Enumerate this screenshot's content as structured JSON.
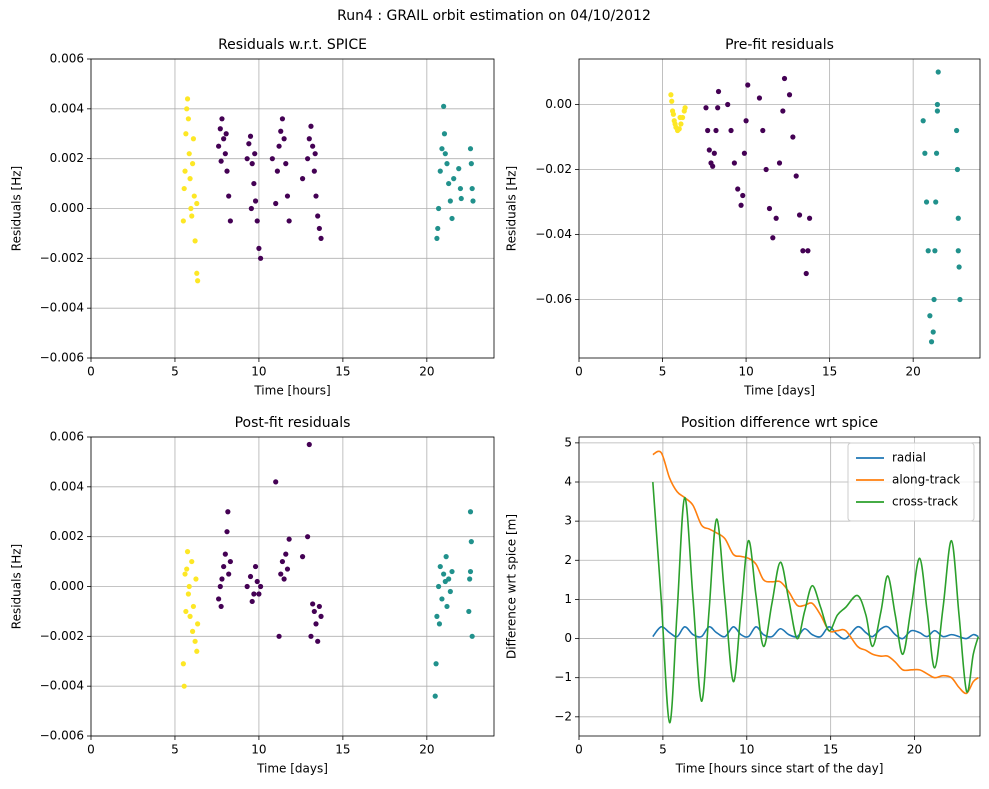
{
  "title": "Run4 : GRAIL orbit estimation on 04/10/2012",
  "chart_data": [
    {
      "type": "scatter",
      "title": "Residuals w.r.t. SPICE",
      "x_label": "Time [hours]",
      "y_label": "Residuals [Hz]",
      "xlim": [
        0,
        24
      ],
      "xticks": [
        0,
        5,
        10,
        15,
        20
      ],
      "ylim": [
        -0.006,
        0.006
      ],
      "yticks": [
        {
          "value": -0.006,
          "label": "−0.006"
        },
        {
          "value": -0.004,
          "label": "−0.004"
        },
        {
          "value": -0.002,
          "label": "−0.002"
        },
        {
          "value": 0,
          "label": "0.000"
        },
        0.002,
        0.004,
        0.006
      ],
      "grid": true,
      "series": [
        {
          "color": "#fde725",
          "x": [
            5.5,
            5.55,
            5.6,
            5.65,
            5.7,
            5.75,
            5.8,
            5.85,
            5.9,
            5.95,
            6.0,
            6.05,
            6.1,
            6.15,
            6.2,
            6.3,
            6.35,
            6.3
          ],
          "values": [
            -0.0005,
            0.0008,
            0.0015,
            0.003,
            0.004,
            0.0044,
            0.0036,
            0.0022,
            0.0012,
            0,
            -0.0003,
            0.0018,
            0.0028,
            0.0005,
            -0.0013,
            -0.0026,
            -0.0029,
            0.0002
          ]
        },
        {
          "color": "#440154",
          "x": [
            7.6,
            7.7,
            7.8,
            7.9,
            8.0,
            8.1,
            8.2,
            8.3,
            7.75,
            8.05,
            9.3,
            9.4,
            9.5,
            9.6,
            9.7,
            9.8,
            9.9,
            10.0,
            10.1,
            9.55,
            9.75,
            11.1,
            11.2,
            11.3,
            11.4,
            11.5,
            11.6,
            11.7,
            11.8,
            11.0,
            10.8,
            12.9,
            13.0,
            13.1,
            13.2,
            13.3,
            13.4,
            13.5,
            13.6,
            13.7,
            12.6,
            13.35
          ],
          "values": [
            0.0025,
            0.0032,
            0.0036,
            0.0028,
            0.0022,
            0.0015,
            0.0005,
            -0.0005,
            0.0019,
            0.003,
            0.002,
            0.0026,
            0.0029,
            0.0018,
            0.001,
            0.0003,
            -0.0005,
            -0.0016,
            -0.002,
            0,
            0.0022,
            0.0015,
            0.0025,
            0.0031,
            0.0036,
            0.0028,
            0.0018,
            0.0005,
            -0.0005,
            0.0002,
            0.002,
            0.002,
            0.0028,
            0.0033,
            0.0025,
            0.0015,
            0.0005,
            -0.0003,
            -0.0008,
            -0.0012,
            0.0012,
            0.0022
          ]
        },
        {
          "color": "#21918c",
          "x": [
            20.6,
            20.7,
            20.8,
            20.9,
            21.0,
            21.05,
            21.1,
            21.2,
            21.3,
            21.4,
            21.5,
            21.6,
            21.9,
            22.0,
            22.05,
            22.6,
            22.65,
            22.7,
            22.75,
            20.65
          ],
          "values": [
            -0.0012,
            0,
            0.0015,
            0.0024,
            0.0041,
            0.003,
            0.0022,
            0.0018,
            0.001,
            0.0003,
            -0.0004,
            0.0012,
            0.0016,
            0.0008,
            0.0004,
            0.0024,
            0.0018,
            0.0008,
            0.0003,
            -0.0008
          ]
        }
      ]
    },
    {
      "type": "scatter",
      "title": "Pre-fit residuals",
      "x_label": "Time [days]",
      "y_label": "Residuals [Hz]",
      "xlim": [
        0,
        24
      ],
      "xticks": [
        0,
        5,
        10,
        15,
        20
      ],
      "ylim": [
        -0.078,
        0.014
      ],
      "yticks": [
        {
          "value": -0.06,
          "label": "−0.06"
        },
        {
          "value": -0.04,
          "label": "−0.04"
        },
        {
          "value": -0.02,
          "label": "−0.02"
        },
        {
          "value": 0,
          "label": "0.00"
        }
      ],
      "grid": true,
      "series": [
        {
          "color": "#fde725",
          "x": [
            5.5,
            5.55,
            5.6,
            5.7,
            5.8,
            5.9,
            6.0,
            6.1,
            6.2,
            6.3,
            6.35,
            5.65,
            5.75,
            6.05
          ],
          "values": [
            0.003,
            0.001,
            -0.002,
            -0.005,
            -0.007,
            -0.008,
            -0.0075,
            -0.006,
            -0.004,
            -0.002,
            -0.001,
            -0.003,
            -0.006,
            -0.004
          ]
        },
        {
          "color": "#440154",
          "x": [
            7.6,
            7.7,
            7.8,
            7.9,
            8.0,
            8.1,
            8.2,
            8.3,
            8.35,
            8.9,
            9.1,
            9.3,
            9.5,
            9.7,
            9.8,
            9.9,
            10.0,
            10.1,
            10.8,
            11.0,
            11.2,
            11.4,
            11.6,
            11.8,
            12.0,
            12.2,
            12.3,
            12.6,
            12.8,
            13.0,
            13.2,
            13.4,
            13.6,
            13.7,
            13.8
          ],
          "values": [
            -0.001,
            -0.008,
            -0.014,
            -0.018,
            -0.019,
            -0.015,
            -0.008,
            -0.001,
            0.004,
            0,
            -0.008,
            -0.018,
            -0.026,
            -0.031,
            -0.028,
            -0.015,
            -0.005,
            0.006,
            0.002,
            -0.008,
            -0.02,
            -0.032,
            -0.041,
            -0.035,
            -0.018,
            -0.002,
            0.008,
            0.003,
            -0.01,
            -0.022,
            -0.034,
            -0.045,
            -0.052,
            -0.045,
            -0.035
          ]
        },
        {
          "color": "#21918c",
          "x": [
            20.6,
            20.7,
            20.8,
            20.9,
            21.0,
            21.1,
            21.2,
            21.25,
            21.3,
            21.35,
            21.4,
            21.45,
            21.5,
            21.45,
            22.6,
            22.65,
            22.7,
            22.75,
            22.8,
            22.7
          ],
          "values": [
            -0.005,
            -0.015,
            -0.03,
            -0.045,
            -0.065,
            -0.073,
            -0.07,
            -0.06,
            -0.045,
            -0.03,
            -0.015,
            0,
            0.01,
            -0.002,
            -0.008,
            -0.02,
            -0.035,
            -0.05,
            -0.06,
            -0.045
          ]
        }
      ]
    },
    {
      "type": "scatter",
      "title": "Post-fit residuals",
      "x_label": "Time [days]",
      "y_label": "Residuals [Hz]",
      "xlim": [
        0,
        24
      ],
      "xticks": [
        0,
        5,
        10,
        15,
        20
      ],
      "ylim": [
        -0.006,
        0.006
      ],
      "yticks": [
        {
          "value": -0.006,
          "label": "−0.006"
        },
        {
          "value": -0.004,
          "label": "−0.004"
        },
        {
          "value": -0.002,
          "label": "−0.002"
        },
        {
          "value": 0,
          "label": "0.000"
        },
        0.002,
        0.004,
        0.006
      ],
      "grid": true,
      "series": [
        {
          "color": "#fde725",
          "x": [
            5.5,
            5.55,
            5.6,
            5.65,
            5.7,
            5.75,
            5.8,
            5.9,
            6.0,
            6.05,
            6.1,
            6.2,
            6.3,
            6.35,
            5.85,
            6.25
          ],
          "values": [
            -0.0031,
            -0.004,
            0.0005,
            -0.001,
            0.0007,
            0.0014,
            -0.0003,
            -0.0012,
            0.001,
            -0.0018,
            -0.0008,
            -0.0022,
            -0.0026,
            -0.0015,
            0,
            0.0003
          ]
        },
        {
          "color": "#440154",
          "x": [
            7.6,
            7.7,
            7.8,
            7.9,
            8.0,
            8.1,
            8.15,
            8.2,
            7.75,
            8.3,
            9.3,
            9.5,
            9.7,
            9.9,
            10.1,
            9.6,
            9.8,
            10.0,
            11.0,
            11.2,
            11.3,
            11.4,
            11.6,
            11.8,
            11.5,
            11.7,
            12.6,
            12.9,
            13.0,
            13.1,
            13.2,
            13.3,
            13.4,
            13.5,
            13.6,
            13.7
          ],
          "values": [
            -0.0005,
            0,
            0.0003,
            0.0008,
            0.0013,
            0.0022,
            0.003,
            0.0005,
            -0.0008,
            0.001,
            0,
            0.0004,
            -0.0003,
            0.0002,
            0,
            -0.0006,
            0.0008,
            -0.0003,
            0.0042,
            -0.002,
            0.0005,
            0.001,
            0.0013,
            0.0019,
            0.0003,
            0.0007,
            0.0012,
            0.002,
            0.0057,
            -0.002,
            -0.0007,
            -0.001,
            -0.0015,
            -0.0022,
            -0.0008,
            -0.0012
          ]
        },
        {
          "color": "#21918c",
          "x": [
            20.5,
            20.55,
            20.6,
            20.7,
            20.8,
            20.9,
            21.0,
            21.1,
            21.2,
            21.3,
            21.4,
            21.5,
            20.75,
            21.15,
            22.5,
            22.55,
            22.6,
            22.65,
            22.7,
            22.6
          ],
          "values": [
            -0.0044,
            -0.0031,
            -0.0012,
            0,
            0.0008,
            -0.0005,
            0.0005,
            0.0002,
            -0.0008,
            0.0003,
            -0.0002,
            0.0006,
            -0.0015,
            0.0012,
            -0.001,
            0.0003,
            0.003,
            0.0018,
            -0.002,
            0.0006
          ]
        }
      ]
    },
    {
      "type": "line",
      "title": "Position difference wrt spice",
      "x_label": "Time [hours since start of the day]",
      "y_label": "Difference wrt spice [m]",
      "xlim": [
        0,
        23.9
      ],
      "xticks": [
        0,
        5,
        10,
        15,
        20
      ],
      "ylim": [
        -2.49,
        5.15
      ],
      "yticks": [
        {
          "value": -2,
          "label": "−2"
        },
        {
          "value": -1,
          "label": "−1"
        },
        0,
        1,
        2,
        3,
        4,
        5
      ],
      "grid": true,
      "legend": "upper right",
      "x": [
        4.4,
        4.9,
        5.4,
        5.85,
        6.3,
        6.8,
        7.3,
        7.75,
        8.2,
        8.7,
        9.2,
        9.65,
        10.1,
        10.55,
        11.0,
        11.5,
        12.0,
        12.5,
        13.0,
        13.45,
        13.9,
        14.4,
        14.9,
        15.4,
        15.9,
        16.6,
        17.1,
        17.5,
        18.0,
        18.4,
        18.85,
        19.3,
        19.8,
        20.3,
        20.75,
        21.2,
        21.7,
        22.2,
        22.65,
        23.1,
        23.5,
        23.8
      ],
      "series": [
        {
          "name": "radial",
          "color": "#1f77b4",
          "values": [
            0.05,
            0.3,
            0.15,
            0.05,
            0.3,
            0.1,
            0.05,
            0.3,
            0.15,
            0.05,
            0.3,
            0.1,
            0.05,
            0.3,
            0.1,
            0.05,
            0.25,
            0.1,
            0.05,
            0.25,
            0.1,
            0.05,
            0.3,
            0.1,
            0.0,
            0.3,
            0.15,
            0.05,
            0.25,
            0.3,
            0.1,
            0.0,
            0.2,
            0.15,
            0.05,
            0.2,
            0.05,
            0.1,
            0.05,
            0.0,
            0.1,
            0.05
          ]
        },
        {
          "name": "along-track",
          "color": "#ff7f0e",
          "values": [
            4.7,
            4.75,
            4.1,
            3.75,
            3.6,
            3.4,
            2.9,
            2.8,
            2.7,
            2.55,
            2.15,
            2.1,
            2.05,
            1.9,
            1.5,
            1.45,
            1.45,
            1.2,
            0.85,
            0.85,
            0.9,
            0.6,
            0.2,
            0.2,
            0.2,
            -0.2,
            -0.3,
            -0.4,
            -0.45,
            -0.45,
            -0.6,
            -0.8,
            -0.8,
            -0.8,
            -0.9,
            -1.0,
            -0.95,
            -1.0,
            -1.25,
            -1.4,
            -1.1,
            -1.0
          ]
        },
        {
          "name": "cross-track",
          "color": "#2ca02c",
          "values": [
            4.0,
            1.0,
            -2.15,
            0.7,
            3.6,
            1.0,
            -1.6,
            0.7,
            3.05,
            1.0,
            -1.1,
            0.7,
            2.5,
            1.1,
            -0.2,
            0.9,
            1.95,
            1.0,
            0.0,
            0.7,
            1.35,
            0.8,
            0.2,
            0.6,
            0.8,
            1.1,
            0.6,
            -0.2,
            0.7,
            1.6,
            0.6,
            -0.4,
            0.8,
            2.05,
            0.7,
            -0.75,
            0.8,
            2.5,
            0.6,
            -1.35,
            -0.4,
            0.05
          ]
        }
      ]
    }
  ]
}
